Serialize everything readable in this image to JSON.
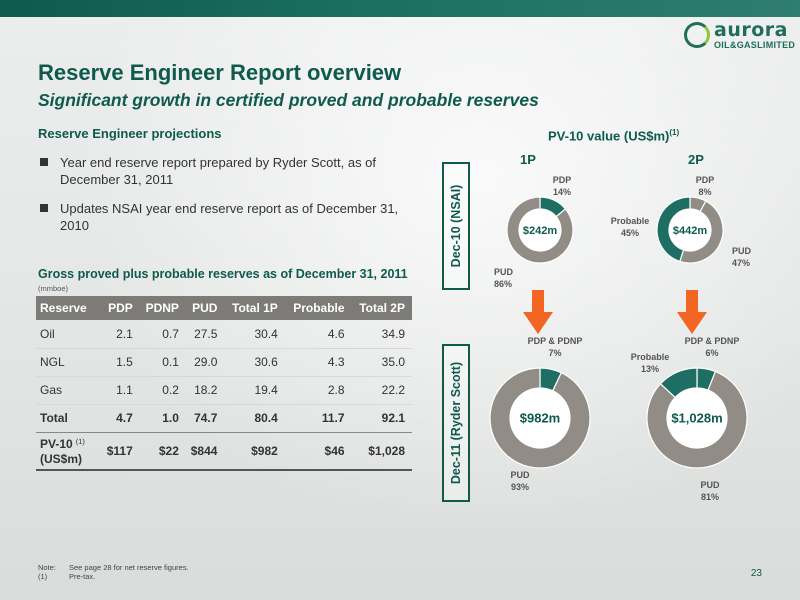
{
  "brand": {
    "logo_word": "aurora",
    "logo_sub": "OIL&GASLIMITED"
  },
  "title": "Reserve Engineer Report overview",
  "subtitle": "Significant growth in certified proved and probable reserves",
  "section_heading": "Reserve Engineer projections",
  "bullets": [
    "Year end reserve report prepared by Ryder Scott, as of December 31, 2011",
    "Updates NSAI year end reserve report as of December 31, 2010"
  ],
  "table_heading": "Gross proved plus probable reserves as of December 31, 2011",
  "table_unit": "(mmboe)",
  "table": {
    "headers": [
      "Reserve",
      "PDP",
      "PDNP",
      "PUD",
      "Total 1P",
      "Probable",
      "Total 2P"
    ],
    "rows": [
      [
        "Oil",
        "2.1",
        "0.7",
        "27.5",
        "30.4",
        "4.6",
        "34.9"
      ],
      [
        "NGL",
        "1.5",
        "0.1",
        "29.0",
        "30.6",
        "4.3",
        "35.0"
      ],
      [
        "Gas",
        "1.1",
        "0.2",
        "18.2",
        "19.4",
        "2.8",
        "22.2"
      ]
    ],
    "total": [
      "Total",
      "4.7",
      "1.0",
      "74.7",
      "80.4",
      "11.7",
      "92.1"
    ],
    "pv": {
      "label_line1": "PV-10",
      "label_line2": "(US$m)",
      "ref": "(1)",
      "values": [
        "$117",
        "$22",
        "$844",
        "$982",
        "$46",
        "$1,028"
      ]
    }
  },
  "pv_title": "PV-10 value (US$m)",
  "pv_title_ref": "(1)",
  "col_1p": "1P",
  "col_2p": "2P",
  "row_label_1": "Dec-10 (NSAI)",
  "row_label_2": "Dec-11 (Ryder Scott)",
  "colors": {
    "dark_green": "#0e5a4c",
    "teal": "#1e6e63",
    "grey": "#918d86",
    "arrow": "#f26522"
  },
  "chart_data": [
    {
      "type": "pie",
      "center_label": "$242m",
      "slices": [
        {
          "name": "PDP",
          "value": 14,
          "color": "#1e6e63",
          "label_line1": "PDP",
          "label_line2": "14%"
        },
        {
          "name": "PUD",
          "value": 86,
          "color": "#918d86",
          "label_line1": "PUD",
          "label_line2": "86%"
        }
      ]
    },
    {
      "type": "pie",
      "center_label": "$442m",
      "slices": [
        {
          "name": "PDP",
          "value": 8,
          "color": "#918d86",
          "label_line1": "PDP",
          "label_line2": "8%"
        },
        {
          "name": "PUD",
          "value": 47,
          "color": "#918d86",
          "label_line1": "PUD",
          "label_line2": "47%"
        },
        {
          "name": "Probable",
          "value": 45,
          "color": "#1e6e63",
          "label_line1": "Probable",
          "label_line2": "45%"
        }
      ]
    },
    {
      "type": "pie",
      "center_label": "$982m",
      "slices": [
        {
          "name": "PDP & PDNP",
          "value": 7,
          "color": "#1e6e63",
          "label_line1": "PDP & PDNP",
          "label_line2": "7%"
        },
        {
          "name": "PUD",
          "value": 93,
          "color": "#918d86",
          "label_line1": "PUD",
          "label_line2": "93%"
        }
      ]
    },
    {
      "type": "pie",
      "center_label": "$1,028m",
      "slices": [
        {
          "name": "PDP & PDNP",
          "value": 6,
          "color": "#1e6e63",
          "label_line1": "PDP & PDNP",
          "label_line2": "6%"
        },
        {
          "name": "PUD",
          "value": 81,
          "color": "#918d86",
          "label_line1": "PUD",
          "label_line2": "81%"
        },
        {
          "name": "Probable",
          "value": 13,
          "color": "#1e6e63",
          "label_line1": "Probable",
          "label_line2": "13%"
        }
      ]
    }
  ],
  "notes": [
    {
      "key": "Note:",
      "text": "See page 28 for net reserve figures."
    },
    {
      "key": "(1)",
      "text": "Pre-tax."
    }
  ],
  "page_number": "23"
}
